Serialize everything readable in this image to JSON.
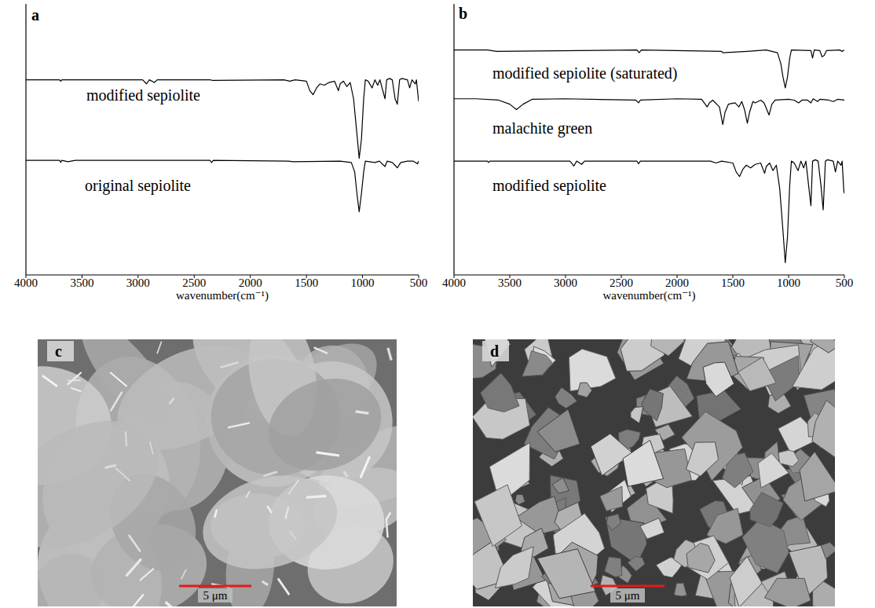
{
  "chart_data": [
    {
      "type": "line",
      "title": "a",
      "x_label": "wavenumber(cm⁻¹)",
      "xlim": [
        4000,
        500
      ],
      "xticks": [
        4000,
        3500,
        3000,
        2500,
        2000,
        1500,
        1000,
        500
      ],
      "ylim": [
        0,
        100
      ],
      "tick_labels": "x",
      "series": [
        {
          "name": "modified sepiolite",
          "color": "#000000",
          "x": [
            4000,
            3700,
            3690,
            3680,
            3620,
            2960,
            2925,
            2900,
            2855,
            2830,
            2360,
            2340,
            1700,
            1650,
            1600,
            1500,
            1470,
            1440,
            1410,
            1380,
            1340,
            1300,
            1250,
            1215,
            1200,
            1170,
            1140,
            1110,
            1080,
            1050,
            1030,
            1010,
            990,
            975,
            950,
            915,
            890,
            865,
            845,
            800,
            785,
            760,
            735,
            710,
            690,
            670,
            650,
            600,
            580,
            560,
            530,
            520,
            505,
            500
          ],
          "values": [
            72,
            72,
            71.5,
            72,
            72,
            72,
            70.5,
            72,
            71,
            72,
            72,
            71.8,
            72,
            71.5,
            72,
            71.5,
            68,
            66.5,
            69,
            70.5,
            70,
            71,
            71.5,
            68,
            70.5,
            71.5,
            69.5,
            71,
            65,
            52,
            43,
            50,
            65,
            72,
            71.5,
            69,
            72,
            70,
            72,
            65,
            72,
            72.5,
            72,
            65,
            63,
            72,
            72.5,
            72,
            69,
            72,
            70.5,
            72,
            66,
            64
          ]
        },
        {
          "name": "original sepiolite",
          "color": "#000000",
          "x": [
            4000,
            3700,
            3690,
            3680,
            3625,
            3560,
            2360,
            2345,
            2330,
            1660,
            1620,
            1200,
            1100,
            1070,
            1050,
            1030,
            1010,
            990,
            975,
            890,
            850,
            800,
            780,
            735,
            700,
            690,
            660,
            600,
            550,
            510,
            500
          ],
          "values": [
            42.3,
            42.3,
            41.5,
            42.3,
            41.8,
            42.3,
            42.3,
            41.5,
            42.3,
            42,
            41.8,
            42,
            41.5,
            38,
            30,
            23.3,
            30,
            38,
            42,
            41.5,
            42,
            40,
            42,
            41.5,
            40,
            39.5,
            41.5,
            42,
            42,
            41,
            42
          ]
        }
      ]
    },
    {
      "type": "line",
      "title": "b",
      "x_label": "wavenumber(cm⁻¹)",
      "xlim": [
        4000,
        500
      ],
      "xticks": [
        4000,
        3500,
        3000,
        2500,
        2000,
        1500,
        1000,
        500
      ],
      "ylim": [
        0,
        100
      ],
      "tick_labels": "x",
      "series": [
        {
          "name": "modified sepiolite (saturated)",
          "color": "#000000",
          "x": [
            4000,
            3700,
            3620,
            2360,
            2340,
            2320,
            1600,
            1590,
            1370,
            1200,
            1100,
            1070,
            1050,
            1030,
            1010,
            990,
            975,
            800,
            785,
            770,
            720,
            700,
            680,
            660,
            540,
            520,
            500
          ],
          "values": [
            83,
            83,
            82.5,
            83,
            82,
            83,
            82.5,
            82,
            82.5,
            83,
            82,
            78,
            73,
            69,
            73,
            80,
            83,
            82.8,
            80,
            83,
            82.8,
            80.5,
            81,
            82.8,
            83,
            82.5,
            83
          ]
        },
        {
          "name": "malachite green",
          "color": "#000000",
          "x": [
            4000,
            3800,
            3600,
            3500,
            3440,
            3380,
            3300,
            3000,
            2370,
            2345,
            2330,
            2000,
            1780,
            1730,
            1710,
            1680,
            1620,
            1590,
            1570,
            1540,
            1480,
            1445,
            1420,
            1395,
            1370,
            1350,
            1320,
            1300,
            1250,
            1220,
            1175,
            1150,
            1120,
            1000,
            950,
            910,
            880,
            830,
            800,
            780,
            740,
            720,
            640,
            600,
            560,
            500
          ],
          "values": [
            65,
            65,
            64.5,
            63,
            61,
            63,
            64.8,
            65,
            64.5,
            63.5,
            64.5,
            65,
            64.8,
            62,
            63.5,
            64.5,
            62,
            55.5,
            60,
            63,
            63.5,
            62,
            64,
            61,
            56,
            60,
            64,
            63.5,
            64.5,
            63.5,
            59,
            63,
            64.5,
            64.8,
            64.5,
            63.5,
            64.5,
            64.5,
            63.5,
            65,
            64,
            64.8,
            64.5,
            64,
            64.8,
            64.5
          ]
        },
        {
          "name": "modified sepiolite",
          "color": "#000000",
          "x": [
            4000,
            3700,
            3690,
            3680,
            2960,
            2925,
            2900,
            2855,
            2830,
            2360,
            2345,
            2330,
            1700,
            1650,
            1600,
            1500,
            1470,
            1440,
            1410,
            1380,
            1340,
            1300,
            1250,
            1215,
            1200,
            1170,
            1140,
            1110,
            1080,
            1050,
            1030,
            1010,
            990,
            975,
            950,
            915,
            890,
            865,
            845,
            800,
            785,
            760,
            735,
            710,
            690,
            670,
            650,
            600,
            580,
            560,
            530,
            520,
            505,
            500
          ],
          "values": [
            42,
            42,
            41.5,
            42,
            42,
            40.2,
            42,
            40.8,
            42,
            42,
            41,
            42,
            42,
            41.3,
            42,
            41.3,
            38,
            36.3,
            39,
            40.5,
            39.5,
            40.8,
            41.3,
            37.5,
            40,
            41.3,
            38.5,
            40.5,
            32,
            16,
            4.5,
            14,
            33,
            42,
            41.3,
            38.5,
            42,
            39.5,
            42,
            25.5,
            42,
            42.5,
            42,
            33,
            24,
            42,
            42.5,
            42,
            38,
            42,
            40.5,
            42,
            31,
            30
          ]
        }
      ]
    }
  ],
  "images": [
    {
      "label": "c",
      "scale_bar": "5 μm"
    },
    {
      "label": "d",
      "scale_bar": "5 μm"
    }
  ]
}
